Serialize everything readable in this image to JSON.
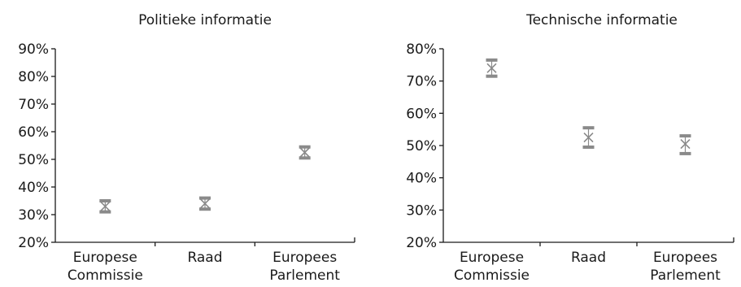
{
  "chart_data": [
    {
      "type": "scatter",
      "title": "Politieke informatie",
      "categories": [
        [
          "Europese",
          "Commissie"
        ],
        [
          "Raad"
        ],
        [
          "Europees",
          "Parlement"
        ]
      ],
      "series": [
        {
          "mean": [
            33,
            34,
            52.5
          ],
          "lower": [
            31,
            32,
            50.5
          ],
          "upper": [
            35,
            36,
            54.5
          ]
        }
      ],
      "ylim": [
        20,
        90
      ],
      "yticks": [
        "20%",
        "30%",
        "40%",
        "50%",
        "60%",
        "70%",
        "80%",
        "90%"
      ],
      "grid": false,
      "legend": "none"
    },
    {
      "type": "scatter",
      "title": "Technische informatie",
      "categories": [
        [
          "Europese",
          "Commissie"
        ],
        [
          "Raad"
        ],
        [
          "Europees",
          "Parlement"
        ]
      ],
      "series": [
        {
          "mean": [
            74,
            52.5,
            50.5
          ],
          "lower": [
            71.5,
            49.5,
            47.5
          ],
          "upper": [
            76.5,
            55.5,
            53
          ]
        }
      ],
      "ylim": [
        20,
        80
      ],
      "yticks": [
        "20%",
        "30%",
        "40%",
        "50%",
        "60%",
        "70%",
        "80%"
      ],
      "grid": false,
      "legend": "none"
    }
  ],
  "style": {
    "marker_color": "#8a8a8a",
    "axis_color": "#1a1a1a"
  }
}
